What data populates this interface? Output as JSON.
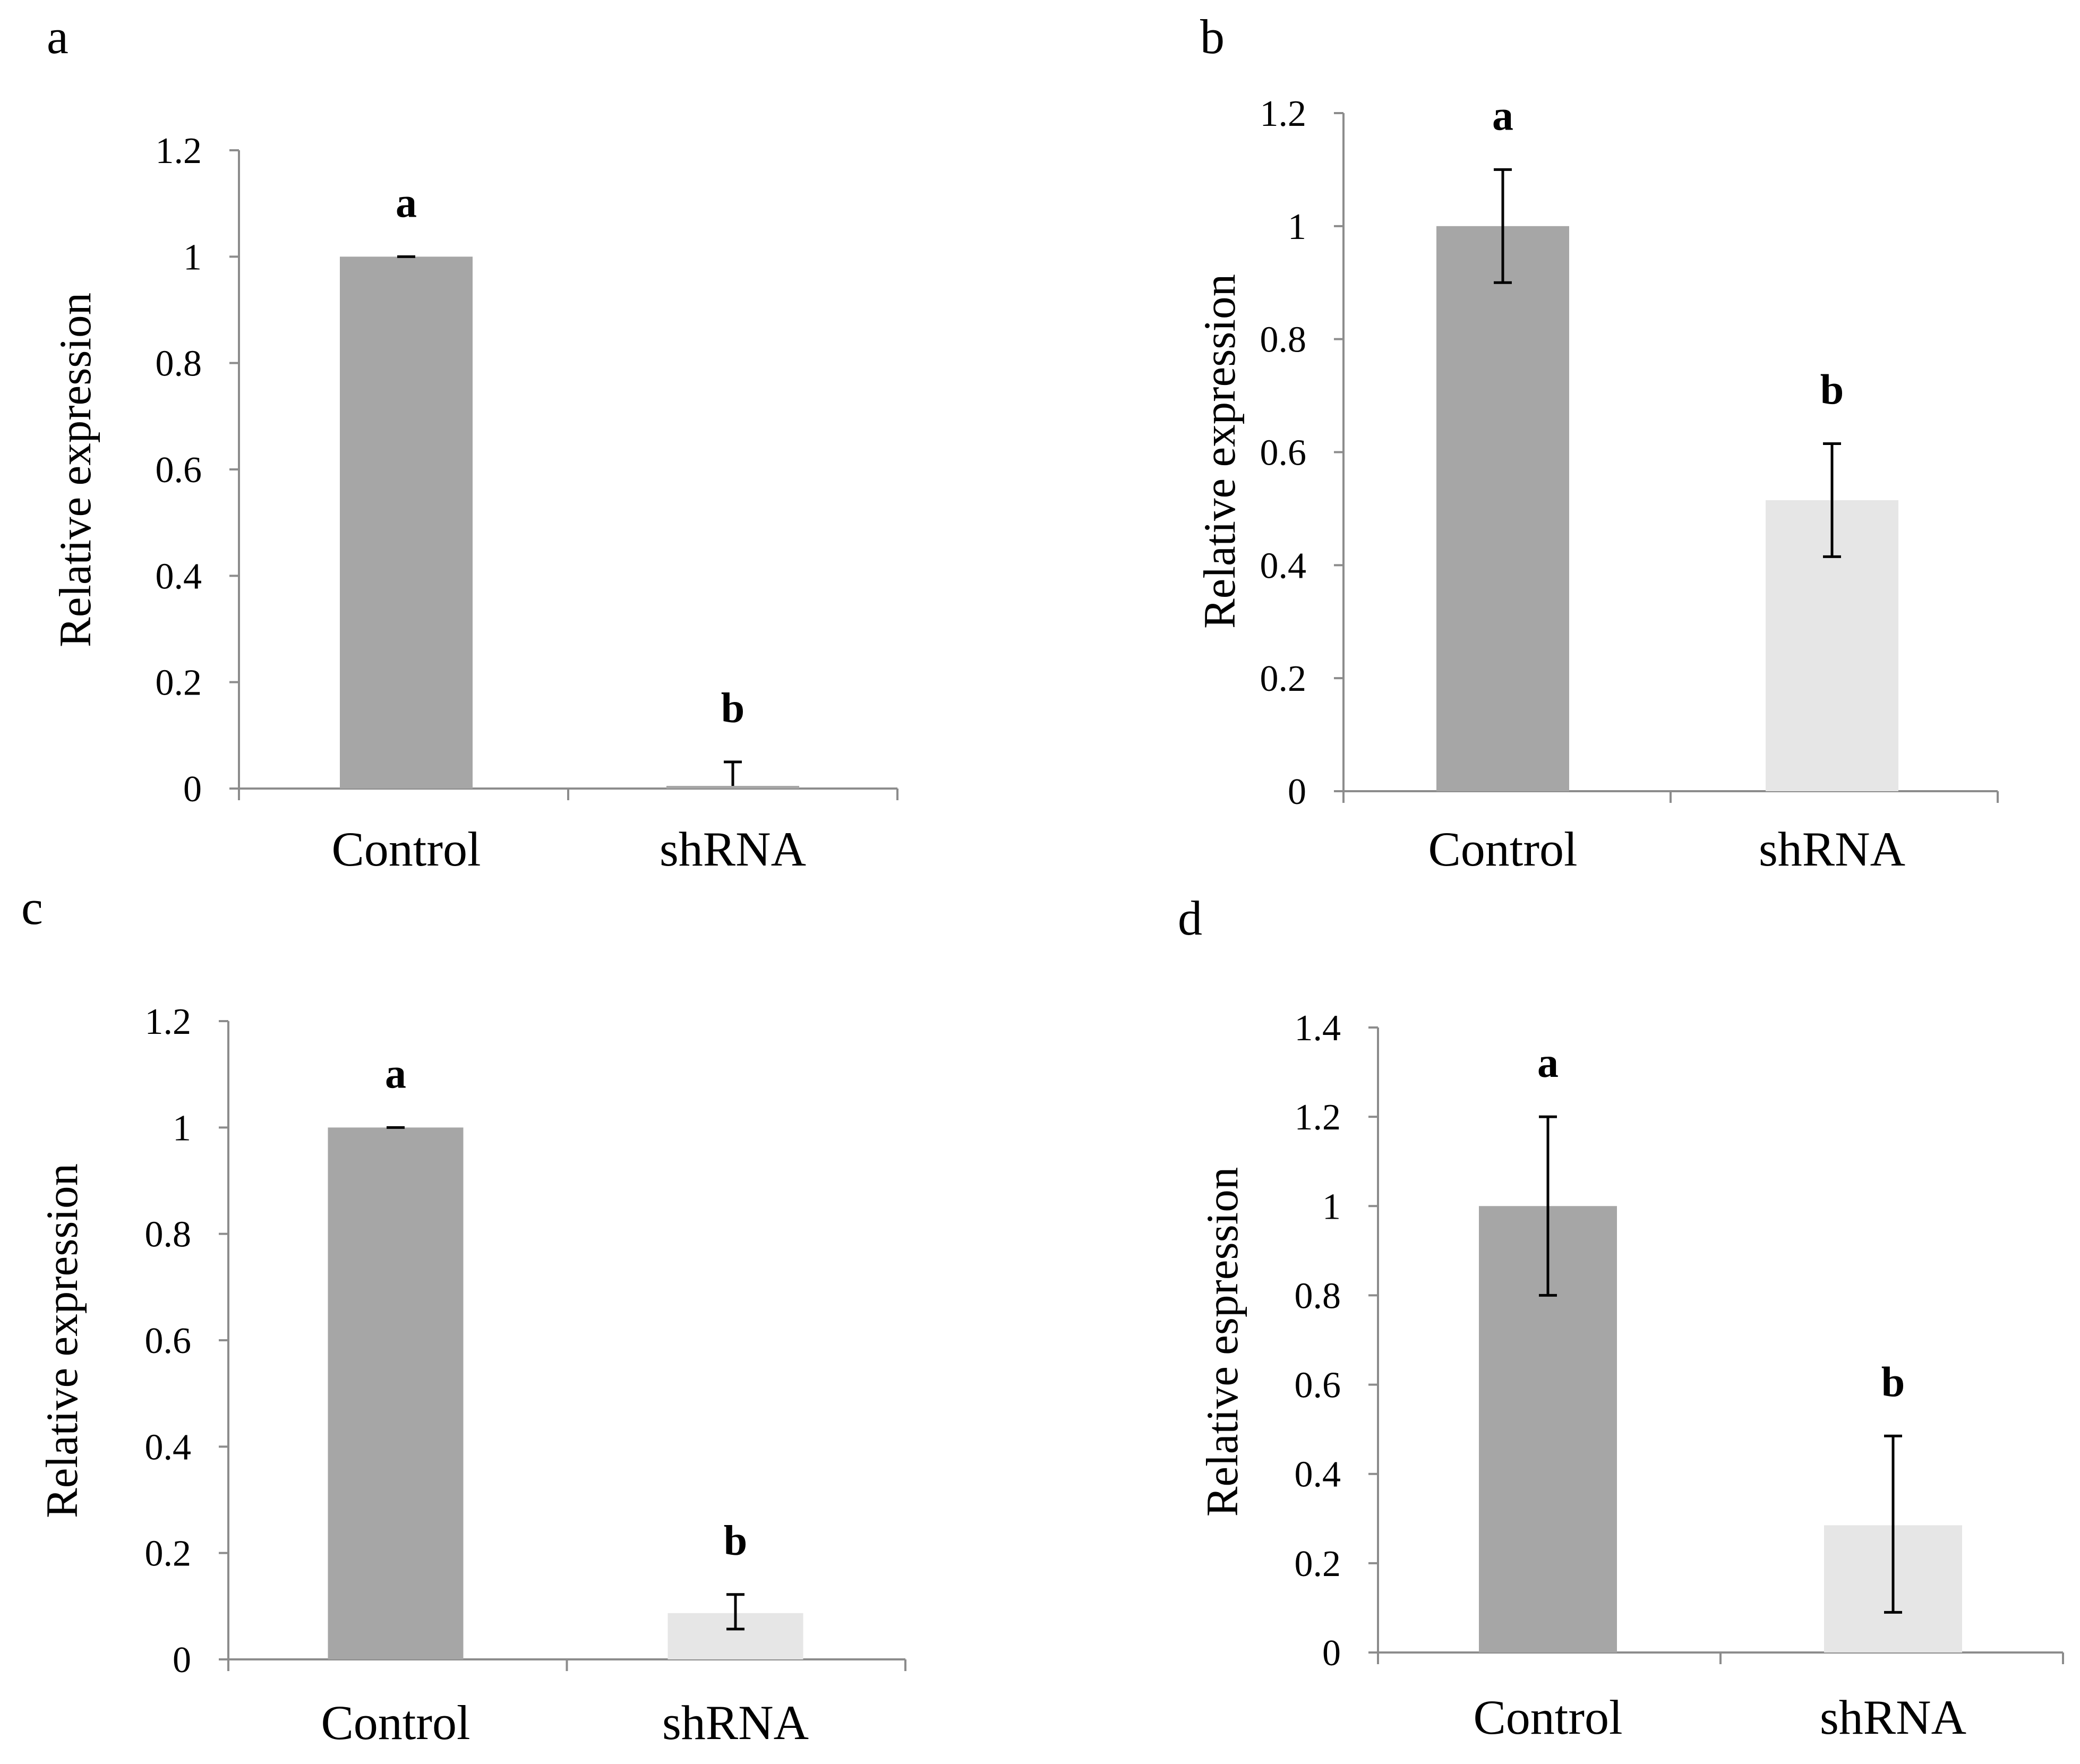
{
  "chart_data": [
    {
      "type": "bar",
      "panel": "a",
      "categories": [
        "Control",
        "shRNA"
      ],
      "values": [
        1.0,
        0.005
      ],
      "errors": [
        [
          0.0,
          0.0
        ],
        [
          0.0,
          0.045
        ]
      ],
      "significance": [
        "a",
        "b"
      ],
      "bar_colors": [
        "#a6a6a6",
        "#a6a6a6"
      ],
      "ylabel": "Relative expression",
      "ylim": [
        0,
        1.2
      ],
      "yticks": [
        0,
        0.2,
        0.4,
        0.6,
        0.8,
        1,
        1.2
      ],
      "ytick_labels": [
        "0",
        "0.2",
        "0.4",
        "0.6",
        "0.8",
        "1",
        "1.2"
      ]
    },
    {
      "type": "bar",
      "panel": "b",
      "categories": [
        "Control",
        "shRNA"
      ],
      "values": [
        1.0,
        0.515
      ],
      "errors": [
        [
          0.1,
          0.1
        ],
        [
          0.1,
          0.1
        ]
      ],
      "significance": [
        "a",
        "b"
      ],
      "bar_colors": [
        "#a6a6a6",
        "#e6e6e6"
      ],
      "ylabel": "Relative expression",
      "ylim": [
        0,
        1.2
      ],
      "yticks": [
        0,
        0.2,
        0.4,
        0.6,
        0.8,
        1,
        1.2
      ],
      "ytick_labels": [
        "0",
        "0.2",
        "0.4",
        "0.6",
        "0.8",
        "1",
        "1.2"
      ]
    },
    {
      "type": "bar",
      "panel": "c",
      "categories": [
        "Control",
        "shRNA"
      ],
      "values": [
        1.0,
        0.087
      ],
      "errors": [
        [
          0.0,
          0.0
        ],
        [
          0.03,
          0.035
        ]
      ],
      "significance": [
        "a",
        "b"
      ],
      "bar_colors": [
        "#a6a6a6",
        "#e6e6e6"
      ],
      "ylabel": "Relative expression",
      "ylim": [
        0,
        1.2
      ],
      "yticks": [
        0,
        0.2,
        0.4,
        0.6,
        0.8,
        1,
        1.2
      ],
      "ytick_labels": [
        "0",
        "0.2",
        "0.4",
        "0.6",
        "0.8",
        "1",
        "1.2"
      ]
    },
    {
      "type": "bar",
      "panel": "d",
      "categories": [
        "Control",
        "shRNA"
      ],
      "values": [
        1.0,
        0.285
      ],
      "errors": [
        [
          0.2,
          0.2
        ],
        [
          0.195,
          0.2
        ]
      ],
      "significance": [
        "a",
        "b"
      ],
      "bar_colors": [
        "#a6a6a6",
        "#e6e6e6"
      ],
      "ylabel": "Relative espression",
      "ylim": [
        0,
        1.4
      ],
      "yticks": [
        0,
        0.2,
        0.4,
        0.6,
        0.8,
        1,
        1.2,
        1.4
      ],
      "ytick_labels": [
        "0",
        "0.2",
        "0.4",
        "0.6",
        "0.8",
        "1",
        "1.2",
        "1.4"
      ]
    }
  ]
}
